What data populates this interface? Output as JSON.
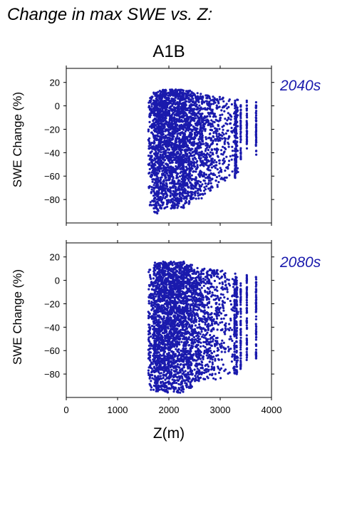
{
  "figure": {
    "supertitle": "Change in max SWE vs. Z:",
    "scenario": "A1B",
    "point_color": "#1a1aad"
  },
  "chart_data": [
    {
      "type": "scatter",
      "period": "2040s",
      "xlabel": "",
      "ylabel": "SWE Change (%)",
      "xlim": [
        0,
        4000
      ],
      "ylim": [
        -100,
        32
      ],
      "xticks": [
        0,
        1000,
        2000,
        3000,
        4000
      ],
      "yticks": [
        20,
        0,
        -20,
        -40,
        -60,
        -80
      ],
      "show_x_tick_labels": false,
      "grid": false,
      "series": [
        {
          "description_free": true,
          "bands": [
            {
              "x": [
                1600,
                1700
              ],
              "y": [
                -86,
                8
              ],
              "density": 120
            },
            {
              "x": [
                1700,
                1800
              ],
              "y": [
                -92,
                12
              ],
              "density": 300
            },
            {
              "x": [
                1800,
                2300
              ],
              "y": [
                -88,
                14
              ],
              "density": 1400
            },
            {
              "x": [
                2300,
                2450
              ],
              "y": [
                -84,
                13
              ],
              "density": 350
            },
            {
              "x": [
                2450,
                2650
              ],
              "y": [
                -80,
                11
              ],
              "density": 320
            },
            {
              "x": [
                2650,
                2850
              ],
              "y": [
                -76,
                9
              ],
              "density": 220
            },
            {
              "x": [
                2850,
                3100
              ],
              "y": [
                -70,
                8
              ],
              "density": 160
            },
            {
              "x": [
                3100,
                3350
              ],
              "y": [
                -62,
                6
              ],
              "density": 90
            }
          ],
          "columns": [
            {
              "x": 3290,
              "y": [
                -62,
                5
              ]
            },
            {
              "x": 3310,
              "y": [
                -58,
                4
              ]
            },
            {
              "x": 3400,
              "y": [
                -47,
                4
              ]
            },
            {
              "x": 3520,
              "y": [
                -37,
                5
              ]
            },
            {
              "x": 3700,
              "y": [
                -43,
                4
              ]
            }
          ]
        }
      ]
    },
    {
      "type": "scatter",
      "period": "2080s",
      "xlabel": "Z(m)",
      "ylabel": "SWE Change (%)",
      "xlim": [
        0,
        4000
      ],
      "ylim": [
        -100,
        32
      ],
      "xticks": [
        0,
        1000,
        2000,
        3000,
        4000
      ],
      "xtick_labels": [
        "0",
        "1000",
        "2000",
        "3000",
        "4000"
      ],
      "yticks": [
        20,
        0,
        -20,
        -40,
        -60,
        -80
      ],
      "show_x_tick_labels": true,
      "grid": false,
      "series": [
        {
          "bands": [
            {
              "x": [
                1600,
                1700
              ],
              "y": [
                -95,
                10
              ],
              "density": 130
            },
            {
              "x": [
                1700,
                1800
              ],
              "y": [
                -97,
                15
              ],
              "density": 320
            },
            {
              "x": [
                1800,
                2300
              ],
              "y": [
                -96,
                16
              ],
              "density": 1500
            },
            {
              "x": [
                2300,
                2450
              ],
              "y": [
                -92,
                14
              ],
              "density": 380
            },
            {
              "x": [
                2450,
                2650
              ],
              "y": [
                -88,
                11
              ],
              "density": 330
            },
            {
              "x": [
                2650,
                2850
              ],
              "y": [
                -85,
                10
              ],
              "density": 230
            },
            {
              "x": [
                2850,
                3100
              ],
              "y": [
                -85,
                9
              ],
              "density": 170
            },
            {
              "x": [
                3100,
                3350
              ],
              "y": [
                -82,
                7
              ],
              "density": 90
            }
          ],
          "columns": [
            {
              "x": 3280,
              "y": [
                -80,
                0
              ]
            },
            {
              "x": 3320,
              "y": [
                -80,
                3
              ]
            },
            {
              "x": 3400,
              "y": [
                -80,
                -2
              ]
            },
            {
              "x": 3520,
              "y": [
                -68,
                5
              ]
            },
            {
              "x": 3700,
              "y": [
                -68,
                3
              ]
            }
          ]
        }
      ]
    }
  ]
}
